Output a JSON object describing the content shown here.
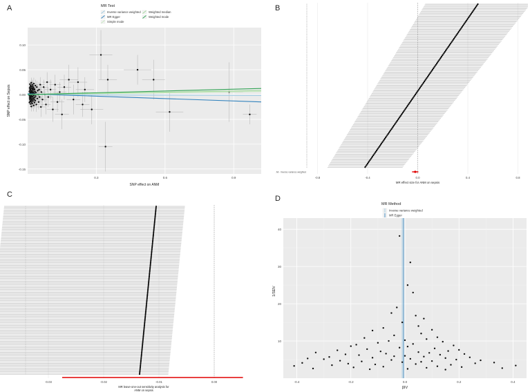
{
  "panels": {
    "A": {
      "letter": "A",
      "legend_title": "MR Test",
      "legend": [
        {
          "label": "Inverse variance weighted",
          "color": "#9ecae1"
        },
        {
          "label": "MR Egger",
          "color": "#3182bd"
        },
        {
          "label": "Simple mode",
          "color": "#c7e9c0"
        },
        {
          "label": "Weighted median",
          "color": "#a1d99b"
        },
        {
          "label": "Weighted mode",
          "color": "#31a354"
        }
      ],
      "xlabel": "SNP effect on ANM",
      "ylabel": "SNP effect on Sepsis",
      "x_ticks": [
        "0.3",
        "0.6",
        "0.9"
      ],
      "y_ticks": [
        "0.10",
        "0.05",
        "0.00",
        "-0.05",
        "-0.10",
        "-0.15"
      ]
    },
    "B": {
      "letter": "B",
      "xlabel": "MR effect size for ANM on sepsis",
      "x_ticks": [
        "-0.8",
        "-0.4",
        "0.0",
        "0.4",
        "0.8"
      ],
      "summary_label": "All - Inverse variance weighted"
    },
    "C": {
      "letter": "C",
      "xlabel_line1": "MR leave-one-out sensitivity analysis for",
      "xlabel_line2": "ANM on sepsis",
      "x_ticks": [
        "-0.03",
        "-0.02",
        "-0.01",
        "0.00"
      ]
    },
    "D": {
      "letter": "D",
      "legend_title": "MR Method",
      "legend": [
        {
          "label": "Inverse variance weighted",
          "color": "#9ecae1"
        },
        {
          "label": "MR Egger",
          "color": "#3182bd"
        }
      ],
      "xlabel": "βIV",
      "ylabel": "1/SEIV",
      "x_ticks": [
        "-0.4",
        "-0.2",
        "0.0",
        "0.2",
        "0.4"
      ],
      "y_ticks": [
        "10",
        "20",
        "30",
        "40"
      ]
    }
  },
  "chart_data": [
    {
      "type": "scatter",
      "panel": "A",
      "xlabel": "SNP effect on ANM",
      "ylabel": "SNP effect on Sepsis",
      "xlim": [
        0.0,
        1.02
      ],
      "ylim": [
        -0.16,
        0.135
      ],
      "points": [
        [
          0.48,
          0.05,
          0.06,
          0.03
        ],
        [
          0.32,
          0.08,
          0.05,
          0.05
        ],
        [
          0.55,
          0.03,
          0.05,
          0.04
        ],
        [
          0.35,
          0.03,
          0.04,
          0.03
        ],
        [
          0.62,
          -0.035,
          0.06,
          0.04
        ],
        [
          0.28,
          -0.03,
          0.05,
          0.03
        ],
        [
          0.34,
          -0.105,
          0.03,
          0.05
        ],
        [
          0.97,
          -0.04,
          0.03,
          0.02
        ],
        [
          0.88,
          0.005,
          0.06,
          0.06
        ],
        [
          0.22,
          0.025,
          0.04,
          0.03
        ],
        [
          0.25,
          0.01,
          0.04,
          0.025
        ],
        [
          0.18,
          0.03,
          0.04,
          0.03
        ],
        [
          0.2,
          -0.01,
          0.03,
          0.03
        ],
        [
          0.24,
          -0.02,
          0.03,
          0.025
        ],
        [
          0.16,
          0.015,
          0.03,
          0.025
        ],
        [
          0.15,
          -0.04,
          0.03,
          0.03
        ],
        [
          0.14,
          0.005,
          0.03,
          0.02
        ],
        [
          0.13,
          -0.015,
          0.03,
          0.02
        ],
        [
          0.12,
          0.02,
          0.025,
          0.02
        ],
        [
          0.11,
          -0.03,
          0.025,
          0.025
        ],
        [
          0.1,
          0.01,
          0.025,
          0.02
        ],
        [
          0.09,
          -0.005,
          0.02,
          0.02
        ],
        [
          0.085,
          0.025,
          0.02,
          0.02
        ],
        [
          0.08,
          -0.02,
          0.02,
          0.02
        ],
        [
          0.075,
          0.0,
          0.02,
          0.015
        ],
        [
          0.07,
          0.015,
          0.02,
          0.015
        ],
        [
          0.065,
          -0.01,
          0.02,
          0.015
        ],
        [
          0.06,
          0.005,
          0.02,
          0.015
        ],
        [
          0.058,
          -0.025,
          0.02,
          0.02
        ],
        [
          0.055,
          0.02,
          0.02,
          0.015
        ],
        [
          0.052,
          -0.005,
          0.015,
          0.015
        ],
        [
          0.05,
          0.01,
          0.015,
          0.015
        ],
        [
          0.048,
          -0.015,
          0.015,
          0.015
        ],
        [
          0.046,
          0.0,
          0.015,
          0.012
        ],
        [
          0.044,
          0.008,
          0.015,
          0.012
        ],
        [
          0.042,
          -0.008,
          0.015,
          0.012
        ],
        [
          0.04,
          0.015,
          0.015,
          0.012
        ],
        [
          0.038,
          -0.02,
          0.015,
          0.015
        ],
        [
          0.036,
          0.004,
          0.012,
          0.012
        ],
        [
          0.035,
          -0.003,
          0.012,
          0.012
        ],
        [
          0.034,
          0.018,
          0.012,
          0.012
        ],
        [
          0.033,
          -0.012,
          0.012,
          0.012
        ],
        [
          0.032,
          0.006,
          0.012,
          0.01
        ],
        [
          0.031,
          -0.006,
          0.012,
          0.01
        ],
        [
          0.03,
          0.01,
          0.012,
          0.01
        ],
        [
          0.03,
          -0.016,
          0.012,
          0.012
        ],
        [
          0.029,
          0.002,
          0.01,
          0.01
        ],
        [
          0.028,
          0.012,
          0.01,
          0.01
        ],
        [
          0.028,
          -0.01,
          0.01,
          0.01
        ],
        [
          0.027,
          0.022,
          0.01,
          0.012
        ],
        [
          0.027,
          -0.002,
          0.01,
          0.01
        ],
        [
          0.026,
          0.005,
          0.01,
          0.01
        ],
        [
          0.026,
          -0.022,
          0.01,
          0.012
        ],
        [
          0.025,
          0.014,
          0.01,
          0.01
        ],
        [
          0.025,
          -0.007,
          0.01,
          0.01
        ],
        [
          0.024,
          0.0,
          0.01,
          0.008
        ],
        [
          0.024,
          0.009,
          0.01,
          0.008
        ],
        [
          0.023,
          -0.013,
          0.01,
          0.01
        ],
        [
          0.023,
          0.017,
          0.01,
          0.01
        ],
        [
          0.022,
          -0.004,
          0.008,
          0.008
        ],
        [
          0.022,
          0.003,
          0.008,
          0.008
        ],
        [
          0.021,
          0.011,
          0.008,
          0.008
        ],
        [
          0.021,
          -0.009,
          0.008,
          0.008
        ],
        [
          0.02,
          0.006,
          0.008,
          0.008
        ],
        [
          0.02,
          -0.018,
          0.008,
          0.01
        ],
        [
          0.02,
          0.02,
          0.008,
          0.01
        ],
        [
          0.019,
          -0.001,
          0.008,
          0.008
        ],
        [
          0.019,
          0.013,
          0.008,
          0.008
        ],
        [
          0.018,
          -0.011,
          0.008,
          0.008
        ],
        [
          0.018,
          0.004,
          0.008,
          0.008
        ],
        [
          0.018,
          -0.005,
          0.008,
          0.008
        ],
        [
          0.017,
          0.016,
          0.008,
          0.008
        ],
        [
          0.017,
          -0.015,
          0.008,
          0.008
        ],
        [
          0.017,
          0.008,
          0.008,
          0.008
        ],
        [
          0.016,
          0.0,
          0.008,
          0.008
        ],
        [
          0.016,
          -0.024,
          0.008,
          0.01
        ],
        [
          0.016,
          0.024,
          0.008,
          0.01
        ],
        [
          0.015,
          -0.003,
          0.006,
          0.006
        ],
        [
          0.015,
          0.007,
          0.006,
          0.006
        ],
        [
          0.015,
          -0.008,
          0.006,
          0.006
        ],
        [
          0.014,
          0.012,
          0.006,
          0.006
        ],
        [
          0.014,
          -0.012,
          0.006,
          0.006
        ],
        [
          0.014,
          0.002,
          0.006,
          0.006
        ],
        [
          0.013,
          0.018,
          0.006,
          0.006
        ],
        [
          0.013,
          -0.019,
          0.006,
          0.006
        ],
        [
          0.013,
          0.005,
          0.006,
          0.006
        ],
        [
          0.012,
          -0.006,
          0.006,
          0.006
        ],
        [
          0.012,
          0.01,
          0.006,
          0.006
        ],
        [
          0.012,
          -0.001,
          0.006,
          0.006
        ],
        [
          0.011,
          0.015,
          0.006,
          0.006
        ],
        [
          0.011,
          -0.014,
          0.006,
          0.006
        ],
        [
          0.011,
          0.003,
          0.006,
          0.006
        ],
        [
          0.01,
          -0.004,
          0.005,
          0.005
        ],
        [
          0.01,
          0.009,
          0.005,
          0.005
        ],
        [
          0.01,
          -0.01,
          0.005,
          0.005
        ],
        [
          0.01,
          0.021,
          0.005,
          0.006
        ],
        [
          0.009,
          -0.007,
          0.005,
          0.005
        ],
        [
          0.009,
          0.001,
          0.005,
          0.005
        ],
        [
          0.009,
          0.013,
          0.005,
          0.005
        ],
        [
          0.008,
          -0.016,
          0.005,
          0.005
        ],
        [
          0.008,
          0.006,
          0.005,
          0.005
        ],
        [
          0.008,
          -0.002,
          0.005,
          0.005
        ]
      ],
      "lines": [
        {
          "name": "Inverse variance weighted",
          "slope": -0.002,
          "intercept": 0.0
        },
        {
          "name": "MR Egger",
          "slope": -0.016,
          "intercept": 0.0015
        },
        {
          "name": "Simple mode",
          "slope": 0.006,
          "intercept": 0.0
        },
        {
          "name": "Weighted median",
          "slope": 0.008,
          "intercept": 0.0
        },
        {
          "name": "Weighted mode",
          "slope": 0.012,
          "intercept": 0.0
        }
      ]
    },
    {
      "type": "forest",
      "panel": "B",
      "xlim": [
        -0.88,
        0.88
      ],
      "n_snps": 138,
      "estimate_range": [
        -0.42,
        0.48
      ],
      "ci_halfwidth_range": [
        0.3,
        0.42
      ],
      "summary": {
        "estimate": -0.02,
        "lower": -0.045,
        "upper": 0.005
      }
    },
    {
      "type": "forest",
      "panel": "C",
      "xlim": [
        -0.034,
        0.0085
      ],
      "n_snps": 138,
      "estimate_range": [
        -0.0135,
        -0.0105
      ],
      "ci": [
        -0.0275,
        0.0052
      ]
    },
    {
      "type": "funnel",
      "panel": "D",
      "xlim": [
        -0.45,
        0.45
      ],
      "ylim": [
        0,
        43
      ],
      "points": [
        [
          -0.02,
          38.2
        ],
        [
          0.02,
          31.1
        ],
        [
          0.01,
          25.0
        ],
        [
          0.03,
          23.0
        ],
        [
          -0.03,
          19.0
        ],
        [
          -0.05,
          17.5
        ],
        [
          0.04,
          16.8
        ],
        [
          0.07,
          16.0
        ],
        [
          -0.01,
          15.0
        ],
        [
          0.05,
          14.0
        ],
        [
          -0.08,
          13.5
        ],
        [
          0.1,
          13.0
        ],
        [
          -0.12,
          12.8
        ],
        [
          0.06,
          12.0
        ],
        [
          -0.04,
          11.5
        ],
        [
          0.12,
          11.0
        ],
        [
          -0.15,
          10.8
        ],
        [
          0.08,
          10.5
        ],
        [
          0.0,
          10.2
        ],
        [
          -0.06,
          10.0
        ],
        [
          0.14,
          9.8
        ],
        [
          -0.1,
          9.5
        ],
        [
          0.03,
          9.2
        ],
        [
          -0.18,
          9.0
        ],
        [
          0.18,
          8.8
        ],
        [
          -0.2,
          8.6
        ],
        [
          0.01,
          8.5
        ],
        [
          -0.02,
          8.2
        ],
        [
          0.11,
          8.0
        ],
        [
          -0.14,
          7.8
        ],
        [
          0.2,
          7.6
        ],
        [
          -0.25,
          7.5
        ],
        [
          0.16,
          7.3
        ],
        [
          -0.09,
          7.2
        ],
        [
          0.05,
          7.0
        ],
        [
          -0.33,
          6.9
        ],
        [
          0.09,
          6.8
        ],
        [
          -0.07,
          6.6
        ],
        [
          0.22,
          6.5
        ],
        [
          -0.22,
          6.4
        ],
        [
          0.13,
          6.3
        ],
        [
          -0.17,
          6.2
        ],
        [
          0.0,
          6.0
        ],
        [
          -0.04,
          5.9
        ],
        [
          0.07,
          5.8
        ],
        [
          -0.28,
          5.7
        ],
        [
          0.24,
          5.6
        ],
        [
          -0.12,
          5.5
        ],
        [
          0.15,
          5.4
        ],
        [
          -0.36,
          5.3
        ],
        [
          0.02,
          5.2
        ],
        [
          -0.3,
          5.1
        ],
        [
          0.19,
          5.0
        ],
        [
          -0.05,
          4.9
        ],
        [
          0.28,
          4.8
        ],
        [
          -0.24,
          4.7
        ],
        [
          0.1,
          4.6
        ],
        [
          -0.16,
          4.5
        ],
        [
          0.06,
          4.4
        ],
        [
          -0.01,
          4.3
        ],
        [
          0.33,
          4.2
        ],
        [
          -0.38,
          4.1
        ],
        [
          0.26,
          4.0
        ],
        [
          -0.21,
          3.9
        ],
        [
          0.04,
          3.8
        ],
        [
          -0.11,
          3.7
        ],
        [
          0.17,
          3.6
        ],
        [
          -0.27,
          3.5
        ],
        [
          0.41,
          3.4
        ],
        [
          -0.41,
          3.3
        ],
        [
          0.12,
          3.2
        ],
        [
          -0.08,
          3.1
        ],
        [
          0.21,
          3.0
        ],
        [
          -0.19,
          2.9
        ],
        [
          0.08,
          2.8
        ],
        [
          0.36,
          2.7
        ],
        [
          -0.34,
          2.6
        ],
        [
          0.01,
          2.5
        ],
        [
          -0.13,
          2.4
        ],
        [
          0.15,
          2.3
        ]
      ],
      "lines": [
        {
          "name": "Inverse variance weighted",
          "x": -0.01
        },
        {
          "name": "MR Egger",
          "x": -0.005
        }
      ]
    }
  ]
}
